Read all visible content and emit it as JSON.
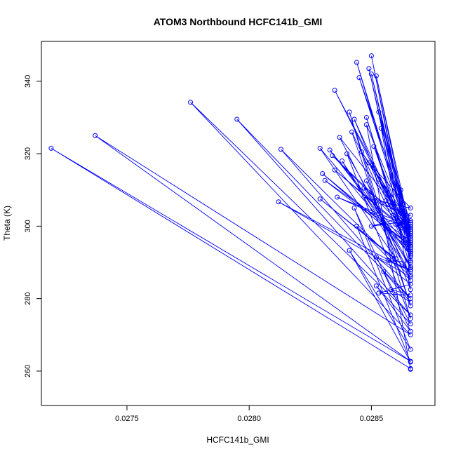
{
  "chart_data": {
    "type": "line",
    "title": "ATOM3 Northbound HCFC141b_GMI",
    "xlabel": "HCFC141b_GMI",
    "ylabel": "Theta (K)",
    "xlim": [
      0.02715,
      0.02876
    ],
    "ylim": [
      250.5,
      351
    ],
    "x_ticks": [
      0.0275,
      0.028,
      0.0285
    ],
    "x_tick_labels": [
      "0.0275",
      "0.0280",
      "0.0285"
    ],
    "y_ticks": [
      260,
      280,
      300,
      320,
      340
    ],
    "y_tick_labels": [
      "260",
      "280",
      "300",
      "320",
      "340"
    ],
    "grid": false,
    "legend": "none",
    "color": "#0000ff",
    "series": [
      {
        "color": "#0000ff",
        "points": [
          [
            0.02866,
            260.7
          ],
          [
            0.02719,
            321.5
          ],
          [
            0.02866,
            262.7
          ],
          [
            0.02737,
            325.0
          ],
          [
            0.02866,
            270.0
          ],
          [
            0.02776,
            334.2
          ],
          [
            0.02866,
            275.5
          ],
          [
            0.02795,
            329.5
          ],
          [
            0.02866,
            280.0
          ],
          [
            0.02813,
            321.2
          ],
          [
            0.02866,
            286.0
          ],
          [
            0.02812,
            306.7
          ],
          [
            0.02866,
            287.5
          ],
          [
            0.02829,
            307.5
          ],
          [
            0.0286,
            291.0
          ],
          [
            0.02829,
            321.5
          ],
          [
            0.02866,
            292.0
          ],
          [
            0.02833,
            321.0
          ],
          [
            0.02866,
            293.5
          ],
          [
            0.0283,
            314.5
          ],
          [
            0.02866,
            294.5
          ],
          [
            0.02831,
            312.6
          ],
          [
            0.02866,
            296.0
          ],
          [
            0.02835,
            337.5
          ],
          [
            0.02866,
            297.5
          ],
          [
            0.02835,
            315.5
          ],
          [
            0.02866,
            298.0
          ],
          [
            0.02834,
            319.5
          ],
          [
            0.02866,
            299.0
          ],
          [
            0.02836,
            308.0
          ],
          [
            0.02866,
            300.0
          ],
          [
            0.02837,
            324.5
          ],
          [
            0.02866,
            286.5
          ],
          [
            0.02838,
            318.0
          ],
          [
            0.02866,
            289.0
          ],
          [
            0.0284,
            320.0
          ],
          [
            0.02866,
            274.5
          ],
          [
            0.02841,
            331.5
          ],
          [
            0.02866,
            278.0
          ],
          [
            0.02842,
            326.0
          ],
          [
            0.02866,
            291.5
          ],
          [
            0.02843,
            329.5
          ],
          [
            0.02866,
            295.0
          ],
          [
            0.02844,
            345.2
          ],
          [
            0.02866,
            297.0
          ],
          [
            0.02845,
            341.0
          ],
          [
            0.02866,
            299.5
          ],
          [
            0.02846,
            320.5
          ],
          [
            0.02866,
            301.0
          ],
          [
            0.02847,
            310.5
          ],
          [
            0.02866,
            288.5
          ],
          [
            0.02848,
            330.0
          ],
          [
            0.02866,
            290.5
          ],
          [
            0.02849,
            343.5
          ],
          [
            0.02866,
            292.5
          ],
          [
            0.0285,
            347.0
          ],
          [
            0.02866,
            294.0
          ],
          [
            0.0285,
            342.0
          ],
          [
            0.02866,
            296.5
          ],
          [
            0.02852,
            341.5
          ],
          [
            0.02866,
            298.5
          ],
          [
            0.02853,
            331.5
          ],
          [
            0.02866,
            300.5
          ],
          [
            0.02854,
            327.0
          ],
          [
            0.02866,
            282.5
          ],
          [
            0.02848,
            312.5
          ],
          [
            0.02866,
            285.0
          ],
          [
            0.02844,
            300.0
          ],
          [
            0.02866,
            262.5
          ],
          [
            0.02841,
            293.3
          ],
          [
            0.02866,
            266.0
          ],
          [
            0.02843,
            305.0
          ],
          [
            0.02866,
            271.0
          ],
          [
            0.02852,
            283.5
          ],
          [
            0.02866,
            273.0
          ],
          [
            0.02855,
            287.5
          ],
          [
            0.02866,
            279.0
          ],
          [
            0.02858,
            282.5
          ],
          [
            0.02866,
            281.0
          ],
          [
            0.02853,
            281.5
          ],
          [
            0.02866,
            284.0
          ],
          [
            0.02852,
            291.5
          ],
          [
            0.02866,
            288.0
          ],
          [
            0.02857,
            290.5
          ],
          [
            0.02866,
            290.0
          ],
          [
            0.02862,
            310.0
          ],
          [
            0.02866,
            292.0
          ],
          [
            0.02863,
            306.0
          ],
          [
            0.02866,
            294.5
          ],
          [
            0.0286,
            300.5
          ],
          [
            0.02866,
            297.0
          ],
          [
            0.02859,
            303.0
          ],
          [
            0.02866,
            299.0
          ],
          [
            0.02856,
            307.0
          ],
          [
            0.02866,
            301.5
          ],
          [
            0.0285,
            300.0
          ],
          [
            0.02866,
            303.0
          ],
          [
            0.02847,
            308.0
          ],
          [
            0.02866,
            305.0
          ],
          [
            0.02849,
            317.5
          ],
          [
            0.02866,
            293.0
          ],
          [
            0.02851,
            322.0
          ],
          [
            0.02866,
            295.5
          ],
          [
            0.02853,
            313.0
          ],
          [
            0.02866,
            298.0
          ],
          [
            0.02848,
            328.0
          ],
          [
            0.02866,
            260.5
          ]
        ]
      }
    ]
  }
}
